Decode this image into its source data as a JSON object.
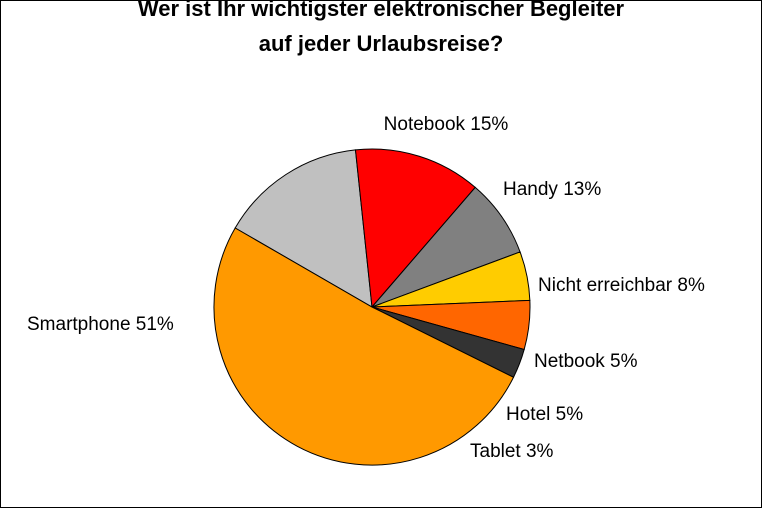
{
  "chart_data": {
    "type": "pie",
    "title": [
      "Wer ist Ihr wichtigster elektronischer Begleiter",
      "auf jeder Urlaubsreise?"
    ],
    "slices": [
      {
        "label": "Notebook 15%",
        "name": "Notebook",
        "value": 15,
        "color": "#c0c0c0"
      },
      {
        "label": "Handy 13%",
        "name": "Handy",
        "value": 13,
        "color": "#ff0000"
      },
      {
        "label": "Nicht erreichbar 8%",
        "name": "Nicht erreichbar",
        "value": 8,
        "color": "#808080"
      },
      {
        "label": "Netbook 5%",
        "name": "Netbook",
        "value": 5,
        "color": "#ffcc00"
      },
      {
        "label": "Hotel 5%",
        "name": "Hotel",
        "value": 5,
        "color": "#ff6600"
      },
      {
        "label": "Tablet 3%",
        "name": "Tablet",
        "value": 3,
        "color": "#333333"
      },
      {
        "label": "Smartphone 51%",
        "name": "Smartphone",
        "value": 51,
        "color": "#ff9900"
      }
    ],
    "legend": "none"
  }
}
